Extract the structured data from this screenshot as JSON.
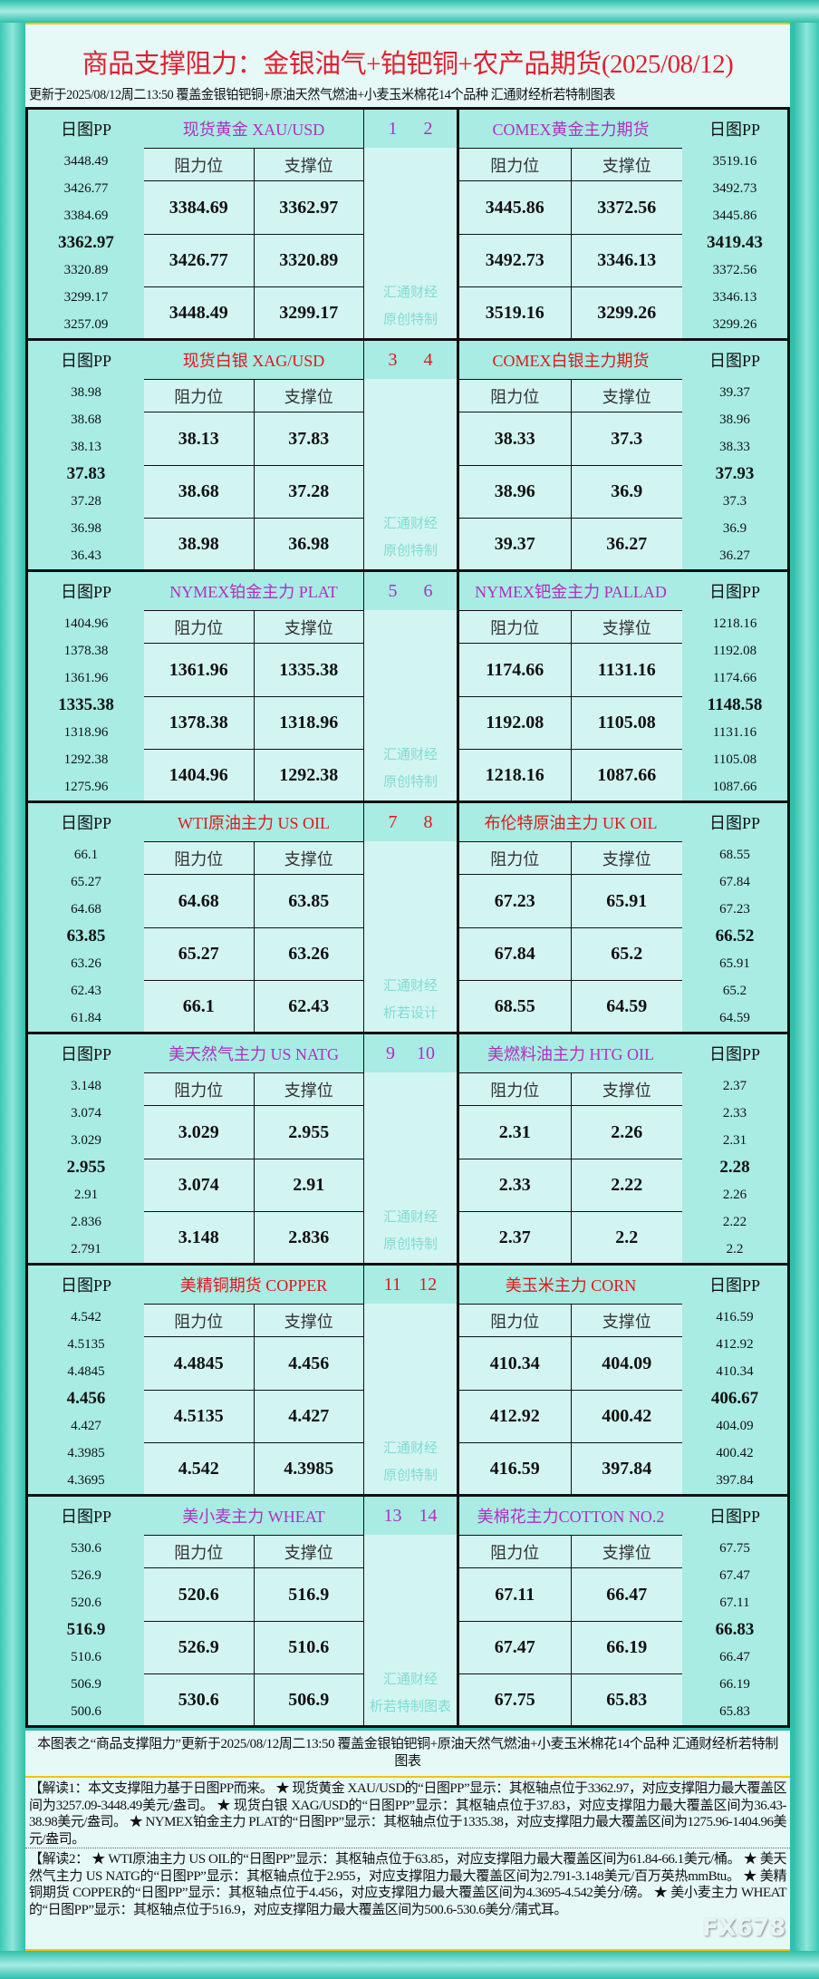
{
  "title": "商品支撑阻力：金银油气+铂钯铜+农产品期货(2025/08/12)",
  "subtitle": "更新于2025/08/12周二13:50  覆盖金银铂钯铜+原油天然气燃油+小麦玉米棉花14个品种  汇通财经析若特制图表",
  "labels": {
    "pp": "日图PP",
    "resistance": "阻力位",
    "support": "支撑位"
  },
  "colors": {
    "odd": "#b030c0",
    "even": "#e01818",
    "title": "#e02030"
  },
  "sections": [
    {
      "nums": [
        "1",
        "2"
      ],
      "watermark": [
        "汇通财经",
        "原创特制"
      ],
      "left": {
        "name": "现货黄金 XAU/USD",
        "pp": [
          "3448.49",
          "3426.77",
          "3384.69",
          "3362.97",
          "3320.89",
          "3299.17",
          "3257.09"
        ],
        "rows": [
          [
            "3384.69",
            "3362.97"
          ],
          [
            "3426.77",
            "3320.89"
          ],
          [
            "3448.49",
            "3299.17"
          ]
        ]
      },
      "right": {
        "name": "COMEX黄金主力期货",
        "pp": [
          "3519.16",
          "3492.73",
          "3445.86",
          "3419.43",
          "3372.56",
          "3346.13",
          "3299.26"
        ],
        "rows": [
          [
            "3445.86",
            "3372.56"
          ],
          [
            "3492.73",
            "3346.13"
          ],
          [
            "3519.16",
            "3299.26"
          ]
        ]
      }
    },
    {
      "nums": [
        "3",
        "4"
      ],
      "watermark": [
        "汇通财经",
        "原创特制"
      ],
      "left": {
        "name": "现货白银 XAG/USD",
        "pp": [
          "38.98",
          "38.68",
          "38.13",
          "37.83",
          "37.28",
          "36.98",
          "36.43"
        ],
        "rows": [
          [
            "38.13",
            "37.83"
          ],
          [
            "38.68",
            "37.28"
          ],
          [
            "38.98",
            "36.98"
          ]
        ]
      },
      "right": {
        "name": "COMEX白银主力期货",
        "pp": [
          "39.37",
          "38.96",
          "38.33",
          "37.93",
          "37.3",
          "36.9",
          "36.27"
        ],
        "rows": [
          [
            "38.33",
            "37.3"
          ],
          [
            "38.96",
            "36.9"
          ],
          [
            "39.37",
            "36.27"
          ]
        ]
      }
    },
    {
      "nums": [
        "5",
        "6"
      ],
      "watermark": [
        "汇通财经",
        "原创特制"
      ],
      "left": {
        "name": "NYMEX铂金主力 PLAT",
        "pp": [
          "1404.96",
          "1378.38",
          "1361.96",
          "1335.38",
          "1318.96",
          "1292.38",
          "1275.96"
        ],
        "rows": [
          [
            "1361.96",
            "1335.38"
          ],
          [
            "1378.38",
            "1318.96"
          ],
          [
            "1404.96",
            "1292.38"
          ]
        ]
      },
      "right": {
        "name": "NYMEX钯金主力 PALLAD",
        "pp": [
          "1218.16",
          "1192.08",
          "1174.66",
          "1148.58",
          "1131.16",
          "1105.08",
          "1087.66"
        ],
        "rows": [
          [
            "1174.66",
            "1131.16"
          ],
          [
            "1192.08",
            "1105.08"
          ],
          [
            "1218.16",
            "1087.66"
          ]
        ]
      }
    },
    {
      "nums": [
        "7",
        "8"
      ],
      "watermark": [
        "汇通财经",
        "析若设计"
      ],
      "left": {
        "name": "WTI原油主力 US OIL",
        "pp": [
          "66.1",
          "65.27",
          "64.68",
          "63.85",
          "63.26",
          "62.43",
          "61.84"
        ],
        "rows": [
          [
            "64.68",
            "63.85"
          ],
          [
            "65.27",
            "63.26"
          ],
          [
            "66.1",
            "62.43"
          ]
        ]
      },
      "right": {
        "name": "布伦特原油主力 UK OIL",
        "pp": [
          "68.55",
          "67.84",
          "67.23",
          "66.52",
          "65.91",
          "65.2",
          "64.59"
        ],
        "rows": [
          [
            "67.23",
            "65.91"
          ],
          [
            "67.84",
            "65.2"
          ],
          [
            "68.55",
            "64.59"
          ]
        ]
      }
    },
    {
      "nums": [
        "9",
        "10"
      ],
      "watermark": [
        "汇通财经",
        "原创特制"
      ],
      "left": {
        "name": "美天然气主力 US NATG",
        "pp": [
          "3.148",
          "3.074",
          "3.029",
          "2.955",
          "2.91",
          "2.836",
          "2.791"
        ],
        "rows": [
          [
            "3.029",
            "2.955"
          ],
          [
            "3.074",
            "2.91"
          ],
          [
            "3.148",
            "2.836"
          ]
        ]
      },
      "right": {
        "name": "美燃料油主力 HTG OIL",
        "pp": [
          "2.37",
          "2.33",
          "2.31",
          "2.28",
          "2.26",
          "2.22",
          "2.2"
        ],
        "rows": [
          [
            "2.31",
            "2.26"
          ],
          [
            "2.33",
            "2.22"
          ],
          [
            "2.37",
            "2.2"
          ]
        ]
      }
    },
    {
      "nums": [
        "11",
        "12"
      ],
      "watermark": [
        "汇通财经",
        "原创特制"
      ],
      "left": {
        "name": "美精铜期货 COPPER",
        "pp": [
          "4.542",
          "4.5135",
          "4.4845",
          "4.456",
          "4.427",
          "4.3985",
          "4.3695"
        ],
        "rows": [
          [
            "4.4845",
            "4.456"
          ],
          [
            "4.5135",
            "4.427"
          ],
          [
            "4.542",
            "4.3985"
          ]
        ]
      },
      "right": {
        "name": "美玉米主力 CORN",
        "pp": [
          "416.59",
          "412.92",
          "410.34",
          "406.67",
          "404.09",
          "400.42",
          "397.84"
        ],
        "rows": [
          [
            "410.34",
            "404.09"
          ],
          [
            "412.92",
            "400.42"
          ],
          [
            "416.59",
            "397.84"
          ]
        ]
      }
    },
    {
      "nums": [
        "13",
        "14"
      ],
      "watermark": [
        "汇通财经",
        "析若特制图表"
      ],
      "left": {
        "name": "美小麦主力 WHEAT",
        "pp": [
          "530.6",
          "526.9",
          "520.6",
          "516.9",
          "510.6",
          "506.9",
          "500.6"
        ],
        "rows": [
          [
            "520.6",
            "516.9"
          ],
          [
            "526.9",
            "510.6"
          ],
          [
            "530.6",
            "506.9"
          ]
        ]
      },
      "right": {
        "name": "美棉花主力COTTON NO.2",
        "pp": [
          "67.75",
          "67.47",
          "67.11",
          "66.83",
          "66.47",
          "66.19",
          "65.83"
        ],
        "rows": [
          [
            "67.11",
            "66.47"
          ],
          [
            "67.47",
            "66.19"
          ],
          [
            "67.75",
            "65.83"
          ]
        ]
      }
    }
  ],
  "footer": "本图表之“商品支撑阻力”更新于2025/08/12周二13:50  覆盖金银铂钯铜+原油天然气燃油+小麦玉米棉花14个品种  汇通财经析若特制图表",
  "explanation1": "【解读1：本文支撑阻力基于日图PP而来。 ★ 现货黄金 XAU/USD的“日图PP”显示：其枢轴点位于3362.97，对应支撑阻力最大覆盖区间为3257.09-3448.49美元/盎司。 ★ 现货白银 XAG/USD的“日图PP”显示：其枢轴点位于37.83，对应支撑阻力最大覆盖区间为36.43-38.98美元/盎司。 ★ NYMEX铂金主力 PLAT的“日图PP”显示：其枢轴点位于1335.38，对应支撑阻力最大覆盖区间为1275.96-1404.96美元/盎司。",
  "explanation2": "【解读2： ★ WTI原油主力 US OIL的“日图PP”显示：其枢轴点位于63.85，对应支撑阻力最大覆盖区间为61.84-66.1美元/桶。 ★ 美天然气主力 US NATG的“日图PP”显示：其枢轴点位于2.955，对应支撑阻力最大覆盖区间为2.791-3.148美元/百万英热mmBtu。 ★ 美精铜期货 COPPER的“日图PP”显示：其枢轴点位于4.456，对应支撑阻力最大覆盖区间为4.3695-4.542美分/磅。 ★ 美小麦主力 WHEAT的“日图PP”显示：其枢轴点位于516.9，对应支撑阻力最大覆盖区间为500.6-530.6美分/蒲式耳。",
  "logo": "FX678"
}
